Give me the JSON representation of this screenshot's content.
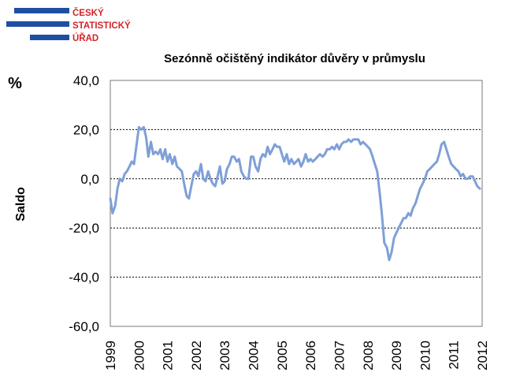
{
  "logo": {
    "line1": "ČESKÝ",
    "line2": "STATISTICKÝ",
    "line3": "ÚŘAD",
    "bar_color": "#1f4fa3",
    "text_color": "#d3232a"
  },
  "chart_data": {
    "type": "line",
    "title": "Sezónně očištěný indikátor důvěry v průmyslu",
    "unit": "%",
    "ylabel": "Saldo",
    "ylim": [
      -60,
      40
    ],
    "ytick_values": [
      40,
      20,
      0,
      -20,
      -40,
      -60
    ],
    "ytick_labels": [
      "40,0",
      "20,0",
      "0,0",
      "-20,0",
      "-40,0",
      "-60,0"
    ],
    "xlim": [
      1999,
      2012
    ],
    "xtick_values": [
      1999,
      2000,
      2001,
      2002,
      2003,
      2004,
      2005,
      2006,
      2007,
      2008,
      2009,
      2010,
      2011,
      2012
    ],
    "xtick_labels": [
      "1999",
      "2000",
      "2001",
      "2002",
      "2003",
      "2004",
      "2005",
      "2006",
      "2007",
      "2008",
      "2009",
      "2010",
      "2011",
      "2012"
    ],
    "grid": "horizontal dashed",
    "line_color": "#7f9fd7",
    "series": [
      {
        "x": [
          1999.0,
          1999.08,
          1999.17,
          1999.25,
          1999.33,
          1999.42,
          1999.5,
          1999.58,
          1999.67,
          1999.75,
          1999.83,
          1999.92,
          2000.0,
          2000.08,
          2000.17,
          2000.25,
          2000.33,
          2000.42,
          2000.5,
          2000.58,
          2000.67,
          2000.75,
          2000.83,
          2000.92,
          2001.0,
          2001.08,
          2001.17,
          2001.25,
          2001.33,
          2001.42,
          2001.5,
          2001.58,
          2001.67,
          2001.75,
          2001.83,
          2001.92,
          2002.0,
          2002.08,
          2002.17,
          2002.25,
          2002.33,
          2002.42,
          2002.5,
          2002.58,
          2002.67,
          2002.75,
          2002.83,
          2002.92,
          2003.0,
          2003.08,
          2003.17,
          2003.25,
          2003.33,
          2003.42,
          2003.5,
          2003.58,
          2003.67,
          2003.75,
          2003.83,
          2003.92,
          2004.0,
          2004.08,
          2004.17,
          2004.25,
          2004.33,
          2004.42,
          2004.5,
          2004.58,
          2004.67,
          2004.75,
          2004.83,
          2004.92,
          2005.0,
          2005.08,
          2005.17,
          2005.25,
          2005.33,
          2005.42,
          2005.5,
          2005.58,
          2005.67,
          2005.75,
          2005.83,
          2005.92,
          2006.0,
          2006.08,
          2006.17,
          2006.25,
          2006.33,
          2006.42,
          2006.5,
          2006.58,
          2006.67,
          2006.75,
          2006.83,
          2006.92,
          2007.0,
          2007.08,
          2007.17,
          2007.25,
          2007.33,
          2007.42,
          2007.5,
          2007.58,
          2007.67,
          2007.75,
          2007.83,
          2007.92,
          2008.0,
          2008.08,
          2008.17,
          2008.25,
          2008.33,
          2008.42,
          2008.5,
          2008.58,
          2008.67,
          2008.75,
          2008.83,
          2008.92,
          2009.0,
          2009.08,
          2009.17,
          2009.25,
          2009.33,
          2009.42,
          2009.5,
          2009.58,
          2009.67,
          2009.75,
          2009.83,
          2009.92,
          2010.0,
          2010.08,
          2010.17,
          2010.25,
          2010.33,
          2010.42,
          2010.5,
          2010.58,
          2010.67,
          2010.75,
          2010.83,
          2010.92,
          2011.0,
          2011.08,
          2011.17,
          2011.25,
          2011.33,
          2011.42,
          2011.5,
          2011.58,
          2011.67,
          2011.75,
          2011.83,
          2011.92
        ],
        "y": [
          -8.0,
          -14.0,
          -11.0,
          -4.0,
          0.0,
          -1.0,
          2.0,
          3.0,
          5.0,
          7.0,
          6.0,
          14.0,
          21.0,
          20.0,
          21.0,
          17.0,
          9.0,
          15.0,
          10.0,
          11.0,
          10.0,
          12.0,
          8.0,
          12.0,
          7.0,
          10.0,
          6.0,
          9.0,
          5.0,
          4.0,
          3.0,
          -2.0,
          -7.0,
          -8.0,
          -3.0,
          2.0,
          3.0,
          1.0,
          6.0,
          0.0,
          -1.0,
          3.0,
          0.0,
          -2.0,
          -3.0,
          1.0,
          5.0,
          -2.0,
          -1.0,
          4.0,
          6.0,
          9.0,
          9.0,
          7.0,
          8.0,
          3.0,
          1.0,
          0.0,
          0.0,
          9.0,
          9.0,
          5.0,
          3.0,
          8.0,
          10.0,
          9.0,
          13.0,
          10.0,
          12.0,
          14.0,
          13.0,
          13.0,
          10.0,
          7.0,
          10.0,
          6.0,
          8.0,
          6.0,
          7.0,
          8.0,
          5.0,
          7.0,
          10.0,
          7.0,
          8.0,
          7.0,
          8.0,
          9.0,
          10.0,
          9.0,
          10.0,
          12.0,
          12.0,
          13.0,
          12.0,
          14.0,
          12.0,
          14.0,
          15.0,
          15.0,
          16.0,
          15.0,
          16.0,
          16.0,
          16.0,
          14.0,
          15.0,
          14.0,
          13.0,
          12.0,
          9.0,
          6.0,
          3.0,
          -6.0,
          -15.0,
          -26.0,
          -28.0,
          -33.0,
          -30.0,
          -24.0,
          -22.0,
          -20.0,
          -18.0,
          -16.0,
          -16.0,
          -14.0,
          -15.0,
          -12.0,
          -10.0,
          -7.0,
          -4.0,
          -2.0,
          0.0,
          3.0,
          4.0,
          5.0,
          6.0,
          7.0,
          10.0,
          14.0,
          15.0,
          12.0,
          9.0,
          6.0,
          5.0,
          4.0,
          3.0,
          1.0,
          2.0,
          0.0,
          0.0,
          1.0,
          1.0,
          -1.0,
          -3.0,
          -4.0
        ]
      }
    ]
  }
}
